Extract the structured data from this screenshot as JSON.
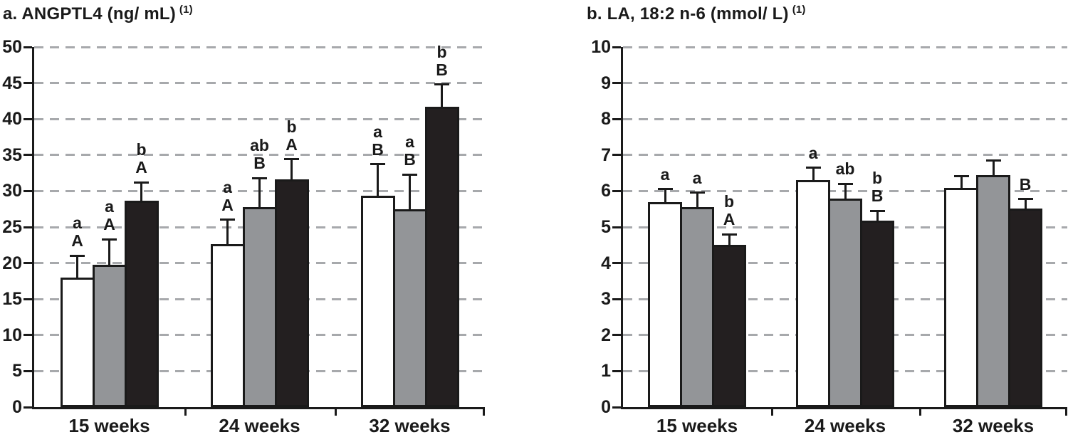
{
  "figure_caption_labels": {
    "left_panel_letter": "a.",
    "right_panel_letter": "b."
  },
  "colors": {
    "axis": "#1a1a1a",
    "gridline": "#a7a9ac",
    "bar_border": "#1a1a1a",
    "bar_white": "#ffffff",
    "bar_grey": "#939598",
    "bar_black": "#231f20"
  },
  "chart_data": [
    {
      "type": "bar",
      "title": "a. ANGPTL4 (ng/ mL)",
      "title_superscript": "(1)",
      "xlabel": "",
      "ylabel": "",
      "categories": [
        "15 weeks",
        "24 weeks",
        "32 weeks"
      ],
      "ylim": [
        0,
        50
      ],
      "ytick_step": 5,
      "grid": true,
      "legend": "none",
      "series": [
        {
          "name": "white-bar",
          "color": "#ffffff",
          "values": [
            18.0,
            22.6,
            29.3
          ],
          "error_top": [
            21.0,
            26.0,
            33.7
          ]
        },
        {
          "name": "grey-bar",
          "color": "#939598",
          "values": [
            19.8,
            27.8,
            27.5
          ],
          "error_top": [
            23.3,
            31.8,
            32.3
          ]
        },
        {
          "name": "black-bar",
          "color": "#231f20",
          "values": [
            28.7,
            31.6,
            41.7
          ],
          "error_top": [
            31.2,
            34.4,
            44.8
          ]
        }
      ],
      "significance_labels": [
        [
          [
            "a",
            "A"
          ],
          [
            "a",
            "A"
          ],
          [
            "b",
            "A"
          ]
        ],
        [
          [
            "a",
            "A"
          ],
          [
            "ab",
            "B"
          ],
          [
            "b",
            "A"
          ]
        ],
        [
          [
            "a",
            "B"
          ],
          [
            "a",
            "B"
          ],
          [
            "b",
            "B"
          ]
        ]
      ]
    },
    {
      "type": "bar",
      "title": "b. LA, 18:2 n-6 (mmol/ L)",
      "title_superscript": "(1)",
      "xlabel": "",
      "ylabel": "",
      "categories": [
        "15 weeks",
        "24 weeks",
        "32 weeks"
      ],
      "ylim": [
        0,
        10
      ],
      "ytick_step": 1,
      "grid": true,
      "legend": "none",
      "series": [
        {
          "name": "white-bar",
          "color": "#ffffff",
          "values": [
            5.7,
            6.3,
            6.08
          ],
          "error_top": [
            6.05,
            6.65,
            6.42
          ]
        },
        {
          "name": "grey-bar",
          "color": "#939598",
          "values": [
            5.55,
            5.8,
            6.45
          ],
          "error_top": [
            5.95,
            6.2,
            6.85
          ]
        },
        {
          "name": "black-bar",
          "color": "#231f20",
          "values": [
            4.5,
            5.18,
            5.52
          ],
          "error_top": [
            4.8,
            5.45,
            5.78
          ]
        }
      ],
      "significance_labels": [
        [
          [
            "a"
          ],
          [
            "a"
          ],
          [
            "b",
            "A"
          ]
        ],
        [
          [
            "a"
          ],
          [
            "ab"
          ],
          [
            "b",
            "B"
          ]
        ],
        [
          [],
          [],
          [
            "B"
          ]
        ]
      ]
    }
  ]
}
